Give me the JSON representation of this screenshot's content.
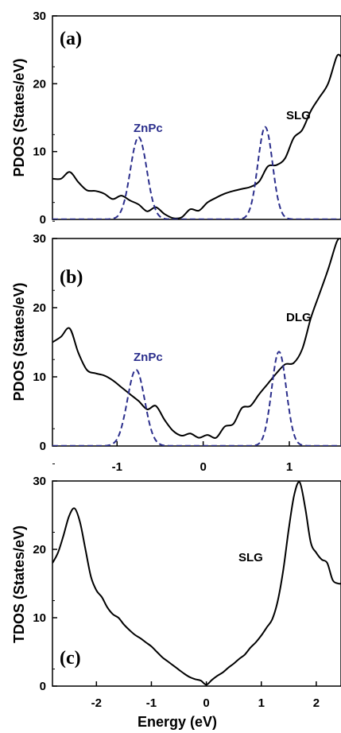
{
  "chart_data": [
    {
      "type": "line",
      "panel_label": "(a)",
      "ylabel": "PDOS (States/eV)",
      "xlabel": "",
      "xlim": [
        -1.75,
        1.6
      ],
      "ylim": [
        0,
        30
      ],
      "yticks": [
        0,
        10,
        20,
        30
      ],
      "xticks": [],
      "series": [
        {
          "name": "SLG",
          "color": "#000000",
          "dash": "solid",
          "x": [
            -1.75,
            -1.65,
            -1.55,
            -1.45,
            -1.35,
            -1.25,
            -1.15,
            -1.05,
            -0.95,
            -0.85,
            -0.75,
            -0.65,
            -0.55,
            -0.45,
            -0.35,
            -0.25,
            -0.15,
            -0.05,
            0.05,
            0.15,
            0.25,
            0.35,
            0.45,
            0.55,
            0.65,
            0.75,
            0.85,
            0.95,
            1.05,
            1.15,
            1.25,
            1.35,
            1.45,
            1.55,
            1.6
          ],
          "y": [
            6.0,
            6.0,
            7.0,
            5.5,
            4.3,
            4.2,
            3.8,
            3.0,
            3.5,
            2.8,
            2.2,
            1.2,
            1.8,
            0.8,
            0.2,
            0.3,
            1.5,
            1.3,
            2.5,
            3.2,
            3.8,
            4.2,
            4.5,
            4.8,
            5.6,
            7.8,
            8.0,
            9.0,
            12.0,
            13.2,
            16.0,
            18.0,
            20.0,
            24.0,
            24.0
          ]
        },
        {
          "name": "ZnPc",
          "color": "#2b2e8c",
          "dash": "dashed",
          "peaks": [
            {
              "center": -0.75,
              "height": 12.1,
              "sigma": 0.095
            },
            {
              "center": 0.72,
              "height": 13.6,
              "sigma": 0.085
            }
          ]
        }
      ],
      "annotations": [
        "SLG",
        "ZnPc"
      ]
    },
    {
      "type": "line",
      "panel_label": "(b)",
      "ylabel": "PDOS (States/eV)",
      "xlabel": "",
      "xlim": [
        -1.75,
        1.6
      ],
      "ylim": [
        0,
        30
      ],
      "yticks": [
        0,
        10,
        20,
        30
      ],
      "xticks": [
        -1,
        0,
        1
      ],
      "series": [
        {
          "name": "DLG",
          "color": "#000000",
          "dash": "solid",
          "x": [
            -1.75,
            -1.65,
            -1.55,
            -1.45,
            -1.35,
            -1.25,
            -1.15,
            -1.05,
            -0.95,
            -0.85,
            -0.75,
            -0.65,
            -0.55,
            -0.45,
            -0.35,
            -0.25,
            -0.15,
            -0.05,
            0.05,
            0.15,
            0.25,
            0.35,
            0.45,
            0.55,
            0.65,
            0.75,
            0.85,
            0.95,
            1.05,
            1.15,
            1.25,
            1.35,
            1.45,
            1.55,
            1.6
          ],
          "y": [
            15.0,
            15.8,
            17.0,
            13.5,
            11.0,
            10.5,
            10.2,
            9.5,
            8.5,
            7.5,
            6.5,
            5.3,
            5.8,
            3.8,
            2.2,
            1.5,
            1.8,
            1.2,
            1.6,
            1.2,
            2.8,
            3.2,
            5.5,
            5.8,
            7.5,
            9.0,
            10.5,
            11.8,
            12.0,
            14.0,
            18.5,
            22.0,
            25.5,
            29.5,
            30.0
          ]
        },
        {
          "name": "ZnPc",
          "color": "#2b2e8c",
          "dash": "dashed",
          "peaks": [
            {
              "center": -0.78,
              "height": 11.0,
              "sigma": 0.1
            },
            {
              "center": 0.88,
              "height": 13.6,
              "sigma": 0.085
            }
          ]
        }
      ],
      "annotations": [
        "DLG",
        "ZnPc"
      ]
    },
    {
      "type": "line",
      "panel_label": "(c)",
      "ylabel": "TDOS (States/eV)",
      "xlabel": "Energy (eV)",
      "xlim": [
        -2.8,
        2.45
      ],
      "ylim": [
        0,
        30
      ],
      "yticks": [
        0,
        10,
        20,
        30
      ],
      "xticks": [
        -2,
        -1,
        0,
        1,
        2
      ],
      "series": [
        {
          "name": "SLG",
          "color": "#000000",
          "dash": "solid",
          "x": [
            -2.8,
            -2.7,
            -2.6,
            -2.5,
            -2.4,
            -2.3,
            -2.2,
            -2.1,
            -2.0,
            -1.9,
            -1.8,
            -1.7,
            -1.6,
            -1.5,
            -1.4,
            -1.3,
            -1.2,
            -1.1,
            -1.0,
            -0.9,
            -0.8,
            -0.7,
            -0.6,
            -0.5,
            -0.4,
            -0.3,
            -0.2,
            -0.1,
            0.0,
            0.1,
            0.2,
            0.3,
            0.4,
            0.5,
            0.6,
            0.7,
            0.8,
            0.9,
            1.0,
            1.1,
            1.2,
            1.3,
            1.4,
            1.5,
            1.6,
            1.7,
            1.8,
            1.9,
            2.0,
            2.1,
            2.2,
            2.3,
            2.4,
            2.45
          ],
          "y": [
            18.0,
            19.5,
            22.0,
            24.8,
            26.0,
            24.0,
            20.0,
            16.0,
            14.0,
            13.0,
            11.5,
            10.5,
            10.0,
            9.0,
            8.2,
            7.5,
            7.0,
            6.4,
            5.8,
            5.0,
            4.2,
            3.6,
            3.0,
            2.4,
            1.8,
            1.3,
            1.0,
            0.8,
            0.2,
            0.9,
            1.5,
            2.0,
            2.7,
            3.3,
            4.0,
            4.6,
            5.6,
            6.4,
            7.4,
            8.6,
            9.8,
            12.5,
            17.0,
            23.0,
            28.0,
            29.8,
            26.0,
            21.0,
            19.5,
            18.5,
            18.0,
            15.5,
            15.0,
            15.0
          ]
        }
      ],
      "annotations": [
        "SLG"
      ]
    }
  ]
}
